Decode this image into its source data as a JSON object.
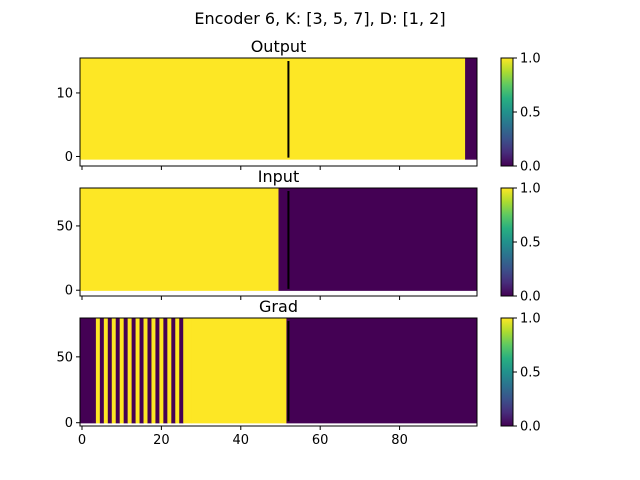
{
  "chart_data": {
    "type": "heatmap",
    "title": "Encoder 6, K: [3, 5, 7], D: [1, 2]",
    "colormap": "viridis",
    "colors": {
      "high": "#fde725",
      "low": "#440154",
      "mid": "#21918c",
      "marker_line": "#000000",
      "frame": "#000000"
    },
    "xlim": [
      -0.5,
      99.5
    ],
    "x_ticks": [
      0,
      20,
      40,
      60,
      80
    ],
    "marker_x": 52,
    "panels": [
      {
        "title": "Output",
        "ylim": [
          -1.5,
          15.5
        ],
        "y_ticks": [
          0,
          10
        ],
        "image_rows": [
          -0.5,
          15.5
        ],
        "segments": [
          {
            "x0": -0.5,
            "x1": 96.5,
            "value": 1.0
          },
          {
            "x0": 96.5,
            "x1": 99.5,
            "value": 0.0
          }
        ],
        "colorbar": {
          "range": [
            0.0,
            1.0
          ],
          "ticks": [
            "0.0",
            "0.5",
            "1.0"
          ]
        }
      },
      {
        "title": "Input",
        "ylim": [
          -4.5,
          79.5
        ],
        "y_ticks": [
          0,
          50
        ],
        "image_rows": [
          -0.5,
          79.5
        ],
        "segments": [
          {
            "x0": -0.5,
            "x1": 49.5,
            "value": 1.0
          },
          {
            "x0": 49.5,
            "x1": 99.5,
            "value": 0.0
          }
        ],
        "colorbar": {
          "range": [
            0.0,
            1.0
          ],
          "ticks": [
            "0.0",
            "0.5",
            "1.0"
          ]
        }
      },
      {
        "title": "Grad",
        "ylim": [
          -2.5,
          79.5
        ],
        "y_ticks": [
          0,
          50
        ],
        "image_rows": [
          -0.5,
          79.5
        ],
        "segments": [
          {
            "x0": -0.5,
            "x1": 3.5,
            "value": 0.0
          },
          {
            "x0": 3.5,
            "x1": 4.5,
            "value": 1.0
          },
          {
            "x0": 4.5,
            "x1": 5.5,
            "value": 0.0
          },
          {
            "x0": 5.5,
            "x1": 6.5,
            "value": 1.0
          },
          {
            "x0": 6.5,
            "x1": 7.5,
            "value": 0.0
          },
          {
            "x0": 7.5,
            "x1": 8.5,
            "value": 1.0
          },
          {
            "x0": 8.5,
            "x1": 9.5,
            "value": 0.0
          },
          {
            "x0": 9.5,
            "x1": 10.5,
            "value": 1.0
          },
          {
            "x0": 10.5,
            "x1": 11.5,
            "value": 0.0
          },
          {
            "x0": 11.5,
            "x1": 12.5,
            "value": 1.0
          },
          {
            "x0": 12.5,
            "x1": 13.5,
            "value": 0.0
          },
          {
            "x0": 13.5,
            "x1": 14.5,
            "value": 1.0
          },
          {
            "x0": 14.5,
            "x1": 15.5,
            "value": 0.0
          },
          {
            "x0": 15.5,
            "x1": 16.5,
            "value": 1.0
          },
          {
            "x0": 16.5,
            "x1": 17.5,
            "value": 0.0
          },
          {
            "x0": 17.5,
            "x1": 18.5,
            "value": 1.0
          },
          {
            "x0": 18.5,
            "x1": 19.5,
            "value": 0.0
          },
          {
            "x0": 19.5,
            "x1": 20.5,
            "value": 1.0
          },
          {
            "x0": 20.5,
            "x1": 21.5,
            "value": 0.0
          },
          {
            "x0": 21.5,
            "x1": 22.5,
            "value": 1.0
          },
          {
            "x0": 22.5,
            "x1": 23.5,
            "value": 0.0
          },
          {
            "x0": 23.5,
            "x1": 24.5,
            "value": 1.0
          },
          {
            "x0": 24.5,
            "x1": 25.5,
            "value": 0.0
          },
          {
            "x0": 25.5,
            "x1": 27.5,
            "value": 1.0
          },
          {
            "x0": 27.5,
            "x1": 51.5,
            "value": 1.0
          },
          {
            "x0": 51.5,
            "x1": 99.5,
            "value": 0.0
          }
        ],
        "colorbar": {
          "range": [
            0.0,
            1.0
          ],
          "ticks": [
            "0.0",
            "0.5",
            "1.0"
          ]
        }
      }
    ]
  }
}
